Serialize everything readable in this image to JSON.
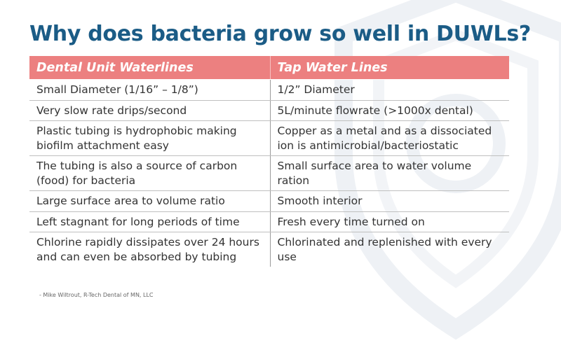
{
  "slide": {
    "title": "Why does bacteria grow so well in DUWLs?",
    "footnote": "- Mike Wiltrout, R-Tech Dental of MN, LLC"
  },
  "table": {
    "headers": [
      "Dental Unit Waterlines",
      "Tap Water Lines"
    ],
    "rows": [
      [
        "Small Diameter (1/16” – 1/8”)",
        "1/2” Diameter"
      ],
      [
        "Very slow rate drips/second",
        "5L/minute flowrate (>1000x dental)"
      ],
      [
        "Plastic tubing is hydrophobic making biofilm attachment easy",
        "Copper as a metal and as a dissociated ion is antimicrobial/bacteriostatic"
      ],
      [
        "The tubing is also a source of carbon (food) for bacteria",
        "Small surface area to water volume ration"
      ],
      [
        "Large surface area to volume ratio",
        "Smooth interior"
      ],
      [
        "Left stagnant for long periods of time",
        "Fresh every time turned on"
      ],
      [
        "Chlorine rapidly dissipates over 24 hours and can even be absorbed by tubing",
        "Chlorinated and replenished with every use"
      ]
    ]
  },
  "colors": {
    "title": "#1b5c86",
    "header_bg": "#ec8080",
    "header_text": "#ffffff",
    "body_text": "#333333",
    "watermark": "#eef1f5"
  },
  "icons": {
    "watermark": "shield-logo-watermark"
  }
}
